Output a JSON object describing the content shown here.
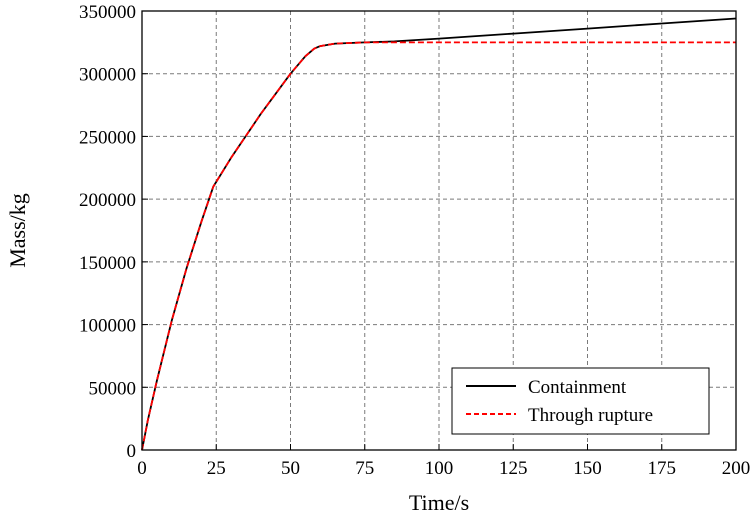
{
  "chart_data": {
    "type": "line",
    "title": "",
    "xlabel": "Time/s",
    "ylabel": "Mass/kg",
    "xlim": [
      0,
      200
    ],
    "ylim": [
      0,
      350000
    ],
    "xticks": [
      0,
      25,
      50,
      75,
      100,
      125,
      150,
      175,
      200
    ],
    "yticks": [
      0,
      50000,
      100000,
      150000,
      200000,
      250000,
      300000,
      350000
    ],
    "grid": true,
    "legend_position": "bottom-right",
    "series": [
      {
        "name": "Containment",
        "color": "#000000",
        "style": "solid",
        "x": [
          0,
          2,
          5,
          10,
          15,
          20,
          24,
          30,
          40,
          50,
          55,
          58,
          60,
          65,
          75,
          85,
          100,
          125,
          150,
          175,
          200
        ],
        "y": [
          0,
          24000,
          55000,
          103000,
          145000,
          182000,
          210000,
          233000,
          268000,
          300000,
          314000,
          320000,
          322000,
          324000,
          325000,
          325800,
          328000,
          332000,
          336000,
          340000,
          344000
        ]
      },
      {
        "name": "Through rupture",
        "color": "#ff0000",
        "style": "dashed",
        "x": [
          0,
          2,
          5,
          10,
          15,
          20,
          24,
          30,
          40,
          50,
          55,
          58,
          60,
          65,
          75,
          85,
          100,
          125,
          150,
          175,
          200
        ],
        "y": [
          0,
          24000,
          55000,
          103000,
          145000,
          182000,
          210000,
          233000,
          268000,
          300000,
          314000,
          320000,
          322000,
          324000,
          325000,
          325000,
          325000,
          325000,
          325000,
          325000,
          325000
        ]
      }
    ]
  }
}
